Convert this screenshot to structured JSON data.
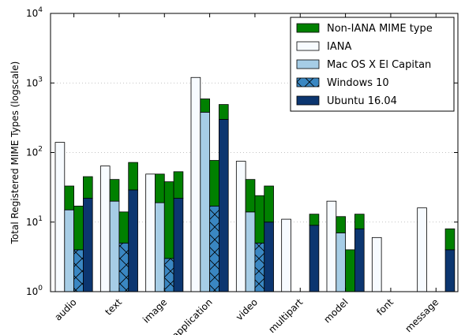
{
  "chart_data": {
    "type": "bar",
    "stacked_pairs": true,
    "ylabel": "Total Registered MIME Types (logscale)",
    "yscale": "log",
    "ylim": [
      1,
      10000
    ],
    "yticks": [
      {
        "value": 1,
        "base": "10",
        "exp": "0"
      },
      {
        "value": 10,
        "base": "10",
        "exp": "1"
      },
      {
        "value": 100,
        "base": "10",
        "exp": "2"
      },
      {
        "value": 1000,
        "base": "10",
        "exp": "3"
      },
      {
        "value": 10000,
        "base": "10",
        "exp": "4"
      }
    ],
    "grid": "horizontal dotted",
    "legend_position": "top-right",
    "categories": [
      "audio",
      "text",
      "image",
      "application",
      "video",
      "multipart",
      "model",
      "font",
      "message"
    ],
    "legend": [
      {
        "key": "non_iana",
        "label": "Non-IANA MIME type",
        "color": "#008000",
        "hatch": "none"
      },
      {
        "key": "iana",
        "label": "IANA",
        "color": "#f7fbff",
        "hatch": "none"
      },
      {
        "key": "macos",
        "label": "Mac OS X El Capitan",
        "color": "#a6cde6",
        "hatch": "none"
      },
      {
        "key": "windows",
        "label": "Windows 10",
        "color": "#3a87c2",
        "hatch": "cross"
      },
      {
        "key": "ubuntu",
        "label": "Ubuntu 16.04",
        "color": "#0c3670",
        "hatch": "none"
      }
    ],
    "series": [
      {
        "key": "iana",
        "values": [
          140,
          64,
          49,
          1200,
          75,
          11,
          20,
          6,
          16
        ]
      },
      {
        "key": "macos",
        "iana_part": [
          15,
          20,
          19,
          380,
          14,
          0,
          7,
          0,
          0
        ],
        "total": [
          33,
          41,
          49,
          590,
          41,
          0,
          12,
          0,
          0
        ]
      },
      {
        "key": "windows",
        "iana_part": [
          4,
          5,
          3,
          17,
          5,
          0,
          0,
          0,
          0
        ],
        "total": [
          17,
          14,
          38,
          77,
          24,
          0,
          4,
          0,
          0
        ]
      },
      {
        "key": "ubuntu",
        "iana_part": [
          22,
          29,
          22,
          300,
          10,
          9,
          8,
          0,
          4
        ],
        "total": [
          45,
          72,
          53,
          490,
          33,
          13,
          13,
          0,
          8
        ]
      }
    ]
  }
}
